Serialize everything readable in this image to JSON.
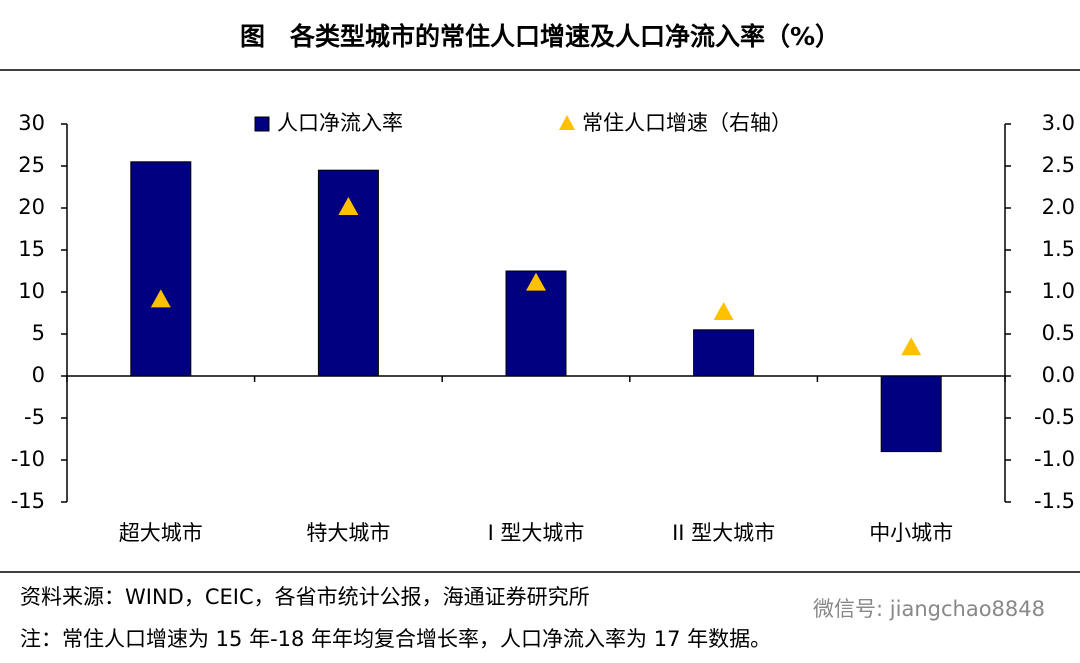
{
  "chart_data": {
    "type": "bar",
    "title": "图　各类型城市的常住人口增速及人口净流入率（%）",
    "categories": [
      "超大城市",
      "特大城市",
      "I 型大城市",
      "II 型大城市",
      "中小城市"
    ],
    "series": [
      {
        "name": "人口净流入率",
        "type": "bar",
        "color": "#000080",
        "values": [
          25.5,
          24.5,
          12.5,
          5.5,
          -9
        ]
      },
      {
        "name": "常住人口增速（右轴）",
        "type": "scatter",
        "axis": "y2",
        "color": "#ffc000",
        "values": [
          0.9,
          2.0,
          1.1,
          0.75,
          0.33
        ]
      }
    ],
    "ylim": [
      -15,
      30
    ],
    "yticks": [
      -15,
      -10,
      -5,
      0,
      5,
      10,
      15,
      20,
      25,
      30
    ],
    "y2lim": [
      -1.5,
      3.0
    ],
    "y2ticks": [
      {
        "value": -1.5,
        "label": "-1.5"
      },
      {
        "value": -1,
        "label": "-1.0"
      },
      {
        "value": -0.5,
        "label": "-0.5"
      },
      {
        "value": 0,
        "label": "0.0"
      },
      {
        "value": 0.5,
        "label": "0.5"
      },
      {
        "value": 1,
        "label": "1.0"
      },
      {
        "value": 1.5,
        "label": "1.5"
      },
      {
        "value": 2,
        "label": "2.0"
      },
      {
        "value": 2.5,
        "label": "2.5"
      },
      {
        "value": 3,
        "label": "3.0"
      }
    ],
    "grid": false,
    "source": "资料来源：WIND，CEIC，各省市统计公报，海通证券研究所",
    "note": "注：常住人口增速为 15 年-18 年年均复合增长率，人口净流入率为 17 年数据。",
    "watermark": "微信号: jiangchao8848"
  }
}
